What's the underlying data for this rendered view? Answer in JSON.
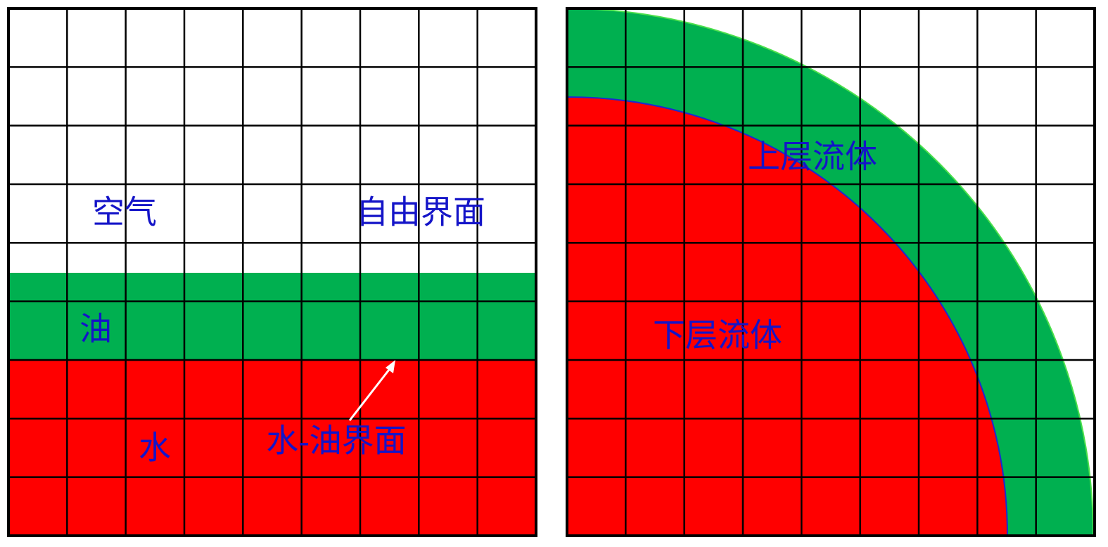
{
  "left": {
    "air": "空气",
    "free_surface": "自由界面",
    "oil": "油",
    "water": "水",
    "interface": "水-油界面"
  },
  "right": {
    "upper_fluid": "上层流体",
    "lower_fluid": "下层流体"
  }
}
